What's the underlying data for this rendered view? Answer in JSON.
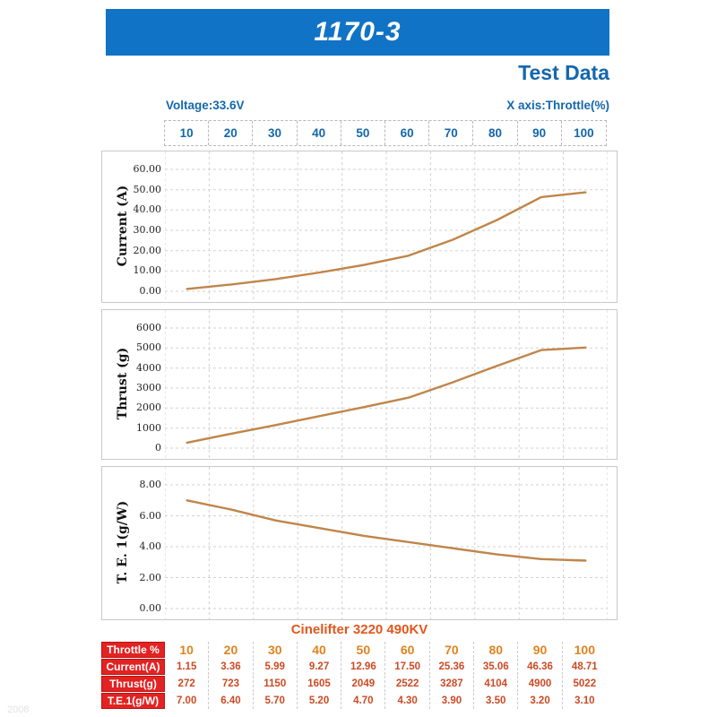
{
  "banner": {
    "title": "1170-3"
  },
  "headings": {
    "test_data": "Test Data",
    "voltage": "Voltage:33.6V",
    "x_axis": "X axis:Throttle(%)"
  },
  "x_axis_labels": [
    "10",
    "20",
    "30",
    "40",
    "50",
    "60",
    "70",
    "80",
    "90",
    "100"
  ],
  "series_title": "Cinelifter 3220 490KV",
  "watermark": "2008",
  "colors": {
    "banner_blue": "#1173c5",
    "heading_blue": "#1467ac",
    "line_orange": "#c0854a",
    "table_red": "#e32222",
    "throttle_orange": "#df831f",
    "value_red": "#cc4a24"
  },
  "chart_data": [
    {
      "type": "line",
      "ylabel": "Current (A)",
      "xlabel": "Throttle(%)",
      "x": [
        10,
        20,
        30,
        40,
        50,
        60,
        70,
        80,
        90,
        100
      ],
      "values": [
        1.15,
        3.36,
        5.99,
        9.27,
        12.96,
        17.5,
        25.36,
        35.06,
        46.36,
        48.71
      ],
      "ylim": [
        0,
        60
      ],
      "yticks": [
        "60.00",
        "50.00",
        "40.00",
        "30.00",
        "20.00",
        "10.00",
        "0.00"
      ],
      "grid": true,
      "line_color": "#c0854a"
    },
    {
      "type": "line",
      "ylabel": "Thrust (g)",
      "xlabel": "Throttle(%)",
      "x": [
        10,
        20,
        30,
        40,
        50,
        60,
        70,
        80,
        90,
        100
      ],
      "values": [
        272,
        723,
        1150,
        1605,
        2049,
        2522,
        3287,
        4104,
        4900,
        5022
      ],
      "ylim": [
        0,
        6000
      ],
      "yticks": [
        "6000",
        "5000",
        "4000",
        "3000",
        "2000",
        "1000",
        "0"
      ],
      "grid": true,
      "line_color": "#c0854a"
    },
    {
      "type": "line",
      "ylabel": "T. E. 1(g/W)",
      "xlabel": "Throttle(%)",
      "x": [
        10,
        20,
        30,
        40,
        50,
        60,
        70,
        80,
        90,
        100
      ],
      "values": [
        7.0,
        6.4,
        5.7,
        5.2,
        4.7,
        4.3,
        3.9,
        3.5,
        3.2,
        3.1
      ],
      "ylim": [
        0,
        8
      ],
      "yticks": [
        "8.00",
        "6.00",
        "4.00",
        "2.00",
        "0.00"
      ],
      "grid": true,
      "line_color": "#c0854a"
    }
  ],
  "table": {
    "rows": [
      {
        "header": "Throttle %",
        "kind": "throttle",
        "values": [
          "10",
          "20",
          "30",
          "40",
          "50",
          "60",
          "70",
          "80",
          "90",
          "100"
        ]
      },
      {
        "header": "Current(A)",
        "kind": "data",
        "values": [
          "1.15",
          "3.36",
          "5.99",
          "9.27",
          "12.96",
          "17.50",
          "25.36",
          "35.06",
          "46.36",
          "48.71"
        ]
      },
      {
        "header": "Thrust(g)",
        "kind": "data",
        "values": [
          "272",
          "723",
          "1150",
          "1605",
          "2049",
          "2522",
          "3287",
          "4104",
          "4900",
          "5022"
        ]
      },
      {
        "header": "T.E.1(g/W)",
        "kind": "data",
        "values": [
          "7.00",
          "6.40",
          "5.70",
          "5.20",
          "4.70",
          "4.30",
          "3.90",
          "3.50",
          "3.20",
          "3.10"
        ]
      }
    ]
  }
}
